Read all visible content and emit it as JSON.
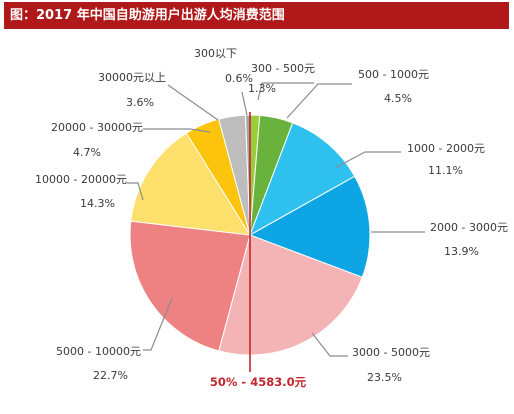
{
  "header": {
    "title": "图：2017 年中国自助游用户出游人均消费范围"
  },
  "chart_data": {
    "type": "pie",
    "title": "图：2017 年中国自助游用户出游人均消费范围",
    "slices": [
      {
        "label": "300 - 500元",
        "pct_label": "1.3%",
        "value": 1.3,
        "color": "#9acd3b"
      },
      {
        "label": "500 - 1000元",
        "pct_label": "4.5%",
        "value": 4.5,
        "color": "#6ab23e"
      },
      {
        "label": "1000 - 2000元",
        "pct_label": "11.1%",
        "value": 11.1,
        "color": "#2ec1ef"
      },
      {
        "label": "2000 - 3000元",
        "pct_label": "13.9%",
        "value": 13.9,
        "color": "#0ea5e4"
      },
      {
        "label": "3000 - 5000元",
        "pct_label": "23.5%",
        "value": 23.5,
        "color": "#f4b3b5"
      },
      {
        "label": "5000 - 10000元",
        "pct_label": "22.7%",
        "value": 22.7,
        "color": "#ee8283"
      },
      {
        "label": "10000 - 20000元",
        "pct_label": "14.3%",
        "value": 14.3,
        "color": "#fddf6b"
      },
      {
        "label": "20000 - 30000元",
        "pct_label": "4.7%",
        "value": 4.7,
        "color": "#fcc40d"
      },
      {
        "label": "30000元以上",
        "pct_label": "3.6%",
        "value": 3.6,
        "color": "#bdbdbd"
      },
      {
        "label": "300以下",
        "pct_label": "0.6%",
        "value": 0.6,
        "color": "#a6a6a6"
      }
    ],
    "annotations": [
      {
        "text": "50% - 4583.0元",
        "color": "#c0262b"
      }
    ]
  }
}
